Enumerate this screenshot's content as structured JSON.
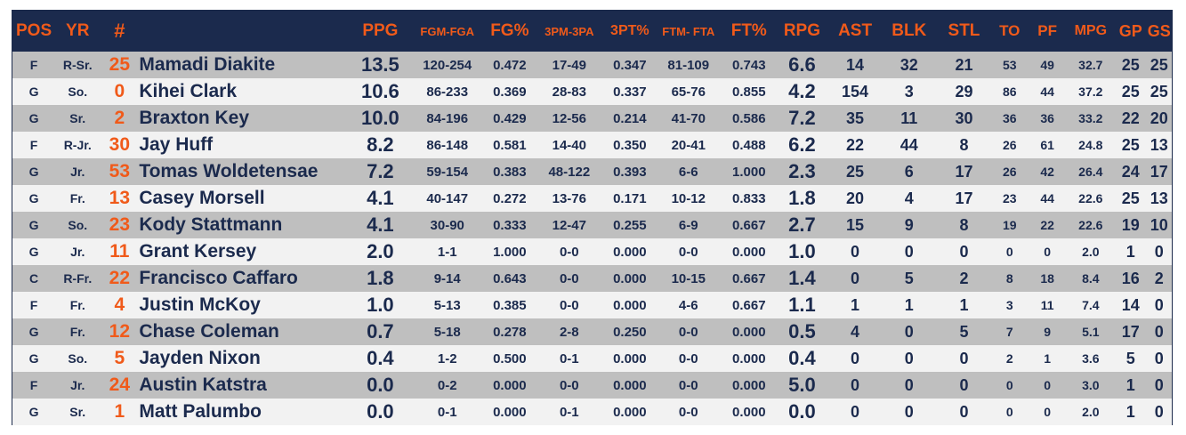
{
  "headers": {
    "pos": "POS",
    "yr": "YR",
    "num": "#",
    "name": "",
    "ppg": "PPG",
    "fgm_fga": "FGM-FGA",
    "fg_pct": "FG%",
    "pm3_pa3": "3PM-3PA",
    "pt3_pct": "3PT%",
    "ftm_fta": "FTM- FTA",
    "ft_pct": "FT%",
    "rpg": "RPG",
    "ast": "AST",
    "blk": "BLK",
    "stl": "STL",
    "to": "TO",
    "pf": "PF",
    "mpg": "MPG",
    "gp": "GP",
    "gs": "GS"
  },
  "rows": [
    {
      "pos": "F",
      "yr": "R-Sr.",
      "num": "25",
      "name": "Mamadi Diakite",
      "ppg": "13.5",
      "fgm_fga": "120-254",
      "fg_pct": "0.472",
      "pm3_pa3": "17-49",
      "pt3_pct": "0.347",
      "ftm_fta": "81-109",
      "ft_pct": "0.743",
      "rpg": "6.6",
      "ast": "14",
      "blk": "32",
      "stl": "21",
      "to": "53",
      "pf": "49",
      "mpg": "32.7",
      "gp": "25",
      "gs": "25"
    },
    {
      "pos": "G",
      "yr": "So.",
      "num": "0",
      "name": "Kihei Clark",
      "ppg": "10.6",
      "fgm_fga": "86-233",
      "fg_pct": "0.369",
      "pm3_pa3": "28-83",
      "pt3_pct": "0.337",
      "ftm_fta": "65-76",
      "ft_pct": "0.855",
      "rpg": "4.2",
      "ast": "154",
      "blk": "3",
      "stl": "29",
      "to": "86",
      "pf": "44",
      "mpg": "37.2",
      "gp": "25",
      "gs": "25"
    },
    {
      "pos": "G",
      "yr": "Sr.",
      "num": "2",
      "name": "Braxton Key",
      "ppg": "10.0",
      "fgm_fga": "84-196",
      "fg_pct": "0.429",
      "pm3_pa3": "12-56",
      "pt3_pct": "0.214",
      "ftm_fta": "41-70",
      "ft_pct": "0.586",
      "rpg": "7.2",
      "ast": "35",
      "blk": "11",
      "stl": "30",
      "to": "36",
      "pf": "36",
      "mpg": "33.2",
      "gp": "22",
      "gs": "20"
    },
    {
      "pos": "F",
      "yr": "R-Jr.",
      "num": "30",
      "name": "Jay Huff",
      "ppg": "8.2",
      "fgm_fga": "86-148",
      "fg_pct": "0.581",
      "pm3_pa3": "14-40",
      "pt3_pct": "0.350",
      "ftm_fta": "20-41",
      "ft_pct": "0.488",
      "rpg": "6.2",
      "ast": "22",
      "blk": "44",
      "stl": "8",
      "to": "26",
      "pf": "61",
      "mpg": "24.8",
      "gp": "25",
      "gs": "13"
    },
    {
      "pos": "G",
      "yr": "Jr.",
      "num": "53",
      "name": "Tomas Woldetensae",
      "ppg": "7.2",
      "fgm_fga": "59-154",
      "fg_pct": "0.383",
      "pm3_pa3": "48-122",
      "pt3_pct": "0.393",
      "ftm_fta": "6-6",
      "ft_pct": "1.000",
      "rpg": "2.3",
      "ast": "25",
      "blk": "6",
      "stl": "17",
      "to": "26",
      "pf": "42",
      "mpg": "26.4",
      "gp": "24",
      "gs": "17"
    },
    {
      "pos": "G",
      "yr": "Fr.",
      "num": "13",
      "name": "Casey Morsell",
      "ppg": "4.1",
      "fgm_fga": "40-147",
      "fg_pct": "0.272",
      "pm3_pa3": "13-76",
      "pt3_pct": "0.171",
      "ftm_fta": "10-12",
      "ft_pct": "0.833",
      "rpg": "1.8",
      "ast": "20",
      "blk": "4",
      "stl": "17",
      "to": "23",
      "pf": "44",
      "mpg": "22.6",
      "gp": "25",
      "gs": "13"
    },
    {
      "pos": "G",
      "yr": "So.",
      "num": "23",
      "name": "Kody Stattmann",
      "ppg": "4.1",
      "fgm_fga": "30-90",
      "fg_pct": "0.333",
      "pm3_pa3": "12-47",
      "pt3_pct": "0.255",
      "ftm_fta": "6-9",
      "ft_pct": "0.667",
      "rpg": "2.7",
      "ast": "15",
      "blk": "9",
      "stl": "8",
      "to": "19",
      "pf": "22",
      "mpg": "22.6",
      "gp": "19",
      "gs": "10"
    },
    {
      "pos": "G",
      "yr": "Jr.",
      "num": "11",
      "name": "Grant Kersey",
      "ppg": "2.0",
      "fgm_fga": "1-1",
      "fg_pct": "1.000",
      "pm3_pa3": "0-0",
      "pt3_pct": "0.000",
      "ftm_fta": "0-0",
      "ft_pct": "0.000",
      "rpg": "1.0",
      "ast": "0",
      "blk": "0",
      "stl": "0",
      "to": "0",
      "pf": "0",
      "mpg": "2.0",
      "gp": "1",
      "gs": "0"
    },
    {
      "pos": "C",
      "yr": "R-Fr.",
      "num": "22",
      "name": "Francisco Caffaro",
      "ppg": "1.8",
      "fgm_fga": "9-14",
      "fg_pct": "0.643",
      "pm3_pa3": "0-0",
      "pt3_pct": "0.000",
      "ftm_fta": "10-15",
      "ft_pct": "0.667",
      "rpg": "1.4",
      "ast": "0",
      "blk": "5",
      "stl": "2",
      "to": "8",
      "pf": "18",
      "mpg": "8.4",
      "gp": "16",
      "gs": "2"
    },
    {
      "pos": "F",
      "yr": "Fr.",
      "num": "4",
      "name": "Justin McKoy",
      "ppg": "1.0",
      "fgm_fga": "5-13",
      "fg_pct": "0.385",
      "pm3_pa3": "0-0",
      "pt3_pct": "0.000",
      "ftm_fta": "4-6",
      "ft_pct": "0.667",
      "rpg": "1.1",
      "ast": "1",
      "blk": "1",
      "stl": "1",
      "to": "3",
      "pf": "11",
      "mpg": "7.4",
      "gp": "14",
      "gs": "0"
    },
    {
      "pos": "G",
      "yr": "Fr.",
      "num": "12",
      "name": "Chase Coleman",
      "ppg": "0.7",
      "fgm_fga": "5-18",
      "fg_pct": "0.278",
      "pm3_pa3": "2-8",
      "pt3_pct": "0.250",
      "ftm_fta": "0-0",
      "ft_pct": "0.000",
      "rpg": "0.5",
      "ast": "4",
      "blk": "0",
      "stl": "5",
      "to": "7",
      "pf": "9",
      "mpg": "5.1",
      "gp": "17",
      "gs": "0"
    },
    {
      "pos": "G",
      "yr": "So.",
      "num": "5",
      "name": "Jayden Nixon",
      "ppg": "0.4",
      "fgm_fga": "1-2",
      "fg_pct": "0.500",
      "pm3_pa3": "0-1",
      "pt3_pct": "0.000",
      "ftm_fta": "0-0",
      "ft_pct": "0.000",
      "rpg": "0.4",
      "ast": "0",
      "blk": "0",
      "stl": "0",
      "to": "2",
      "pf": "1",
      "mpg": "3.6",
      "gp": "5",
      "gs": "0"
    },
    {
      "pos": "F",
      "yr": "Jr.",
      "num": "24",
      "name": "Austin Katstra",
      "ppg": "0.0",
      "fgm_fga": "0-2",
      "fg_pct": "0.000",
      "pm3_pa3": "0-0",
      "pt3_pct": "0.000",
      "ftm_fta": "0-0",
      "ft_pct": "0.000",
      "rpg": "5.0",
      "ast": "0",
      "blk": "0",
      "stl": "0",
      "to": "0",
      "pf": "0",
      "mpg": "3.0",
      "gp": "1",
      "gs": "0"
    },
    {
      "pos": "G",
      "yr": "Sr.",
      "num": "1",
      "name": "Matt Palumbo",
      "ppg": "0.0",
      "fgm_fga": "0-1",
      "fg_pct": "0.000",
      "pm3_pa3": "0-1",
      "pt3_pct": "0.000",
      "ftm_fta": "0-0",
      "ft_pct": "0.000",
      "rpg": "0.0",
      "ast": "0",
      "blk": "0",
      "stl": "0",
      "to": "0",
      "pf": "0",
      "mpg": "2.0",
      "gp": "1",
      "gs": "0"
    }
  ]
}
